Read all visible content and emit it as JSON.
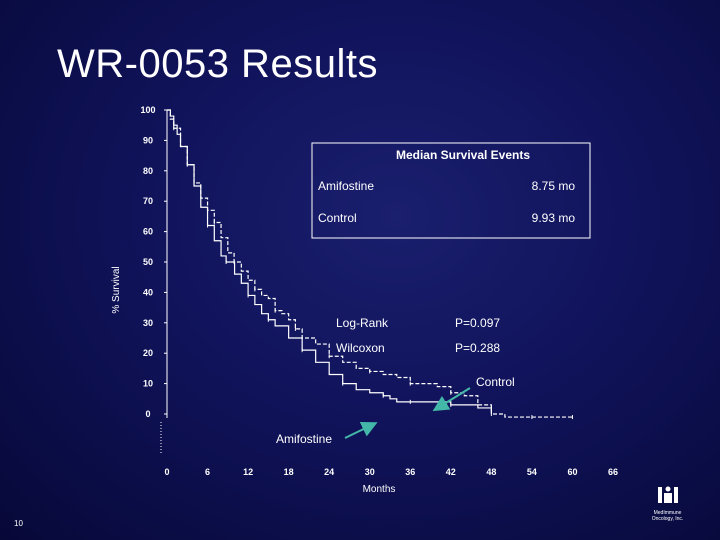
{
  "slide": {
    "title": "WR-0053 Results",
    "page_number": "10",
    "logo_text_line1": "MedImmune",
    "logo_text_line2": "Oncology, Inc."
  },
  "colors": {
    "background": "#10135a",
    "curve": "#ffffff",
    "arrow": "#44b8a8",
    "box_border": "#ffffff"
  },
  "chart_data": {
    "type": "line",
    "title": "",
    "xlabel": "Months",
    "ylabel": "% Survival",
    "xlim": [
      0,
      66
    ],
    "ylim": [
      0,
      100
    ],
    "x_ticks": [
      0,
      6,
      12,
      18,
      24,
      30,
      36,
      42,
      48,
      54,
      60,
      66
    ],
    "y_ticks": [
      0,
      10,
      20,
      30,
      40,
      50,
      60,
      70,
      80,
      90,
      100
    ],
    "legend_box": {
      "header": "Median Survival Events",
      "rows": [
        {
          "label": "Amifostine",
          "value": "8.75 mo"
        },
        {
          "label": "Control",
          "value": "9.93 mo"
        }
      ]
    },
    "stats": [
      {
        "label": "Log-Rank",
        "value": "P=0.097"
      },
      {
        "label": "Wilcoxon",
        "value": "P=0.288"
      }
    ],
    "callouts": [
      {
        "label": "Control",
        "series": "Control"
      },
      {
        "label": "Amifostine",
        "series": "Amifostine"
      }
    ],
    "series": [
      {
        "name": "Amifostine",
        "style": "solid",
        "x": [
          0,
          0.5,
          1,
          1.5,
          2,
          3,
          4,
          5,
          6,
          7,
          8,
          8.75,
          10,
          11,
          12,
          13,
          14,
          15,
          16,
          18,
          20,
          22,
          24,
          26,
          28,
          30,
          32,
          33,
          34,
          36,
          38,
          40,
          42,
          44,
          46,
          48
        ],
        "y": [
          100,
          98,
          95,
          92,
          88,
          82,
          75,
          68,
          62,
          57,
          52,
          50,
          46,
          43,
          39,
          36,
          33,
          31,
          29,
          25,
          21,
          17,
          13,
          10,
          8,
          7,
          6,
          5,
          4,
          4,
          4,
          4,
          3,
          3,
          2,
          1
        ]
      },
      {
        "name": "Control",
        "style": "dashed",
        "x": [
          0,
          0.5,
          1,
          2,
          3,
          4,
          5,
          6,
          7,
          8,
          9,
          9.93,
          11,
          12,
          13,
          14,
          15,
          16,
          17,
          18,
          19,
          20,
          22,
          24,
          26,
          28,
          30,
          32,
          34,
          36,
          38,
          40,
          42,
          44,
          46,
          48,
          50,
          52,
          54,
          56,
          58,
          60
        ],
        "y": [
          100,
          97,
          94,
          88,
          82,
          76,
          71,
          67,
          63,
          58,
          53,
          50,
          47,
          44,
          41,
          39,
          38,
          34,
          33,
          31,
          28,
          25,
          23,
          19,
          17,
          15,
          14,
          13,
          12,
          10,
          10,
          9,
          7,
          6,
          3,
          0,
          -1,
          -1,
          -1,
          -1,
          -1,
          -1
        ]
      }
    ]
  }
}
